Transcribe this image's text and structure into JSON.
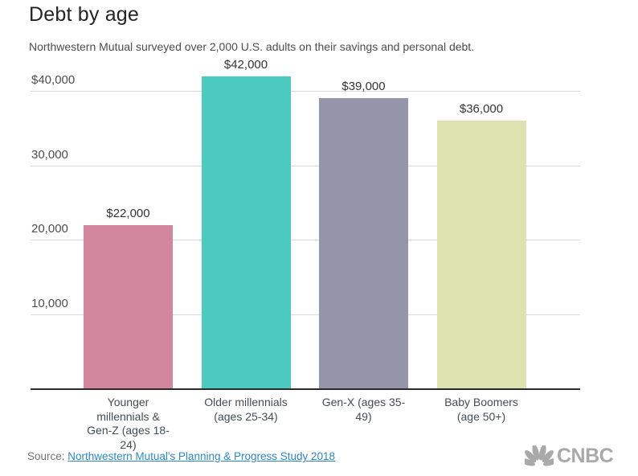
{
  "chart_data": {
    "type": "bar",
    "title": "Debt by age",
    "subtitle": "Northwestern Mutual surveyed over 2,000 U.S. adults on their savings and personal debt.",
    "categories": [
      "Younger millennials & Gen-Z (ages 18-24)",
      "Older millennials (ages 25-34)",
      "Gen-X (ages 35-49)",
      "Baby Boomers (age 50+)"
    ],
    "category_label_lines": [
      [
        "Younger",
        "millennials &",
        "Gen-Z (ages 18-",
        "24)"
      ],
      [
        "Older millennials",
        "(ages 25-34)"
      ],
      [
        "Gen-X (ages 35-",
        "49)"
      ],
      [
        "Baby Boomers",
        "(age 50+)"
      ]
    ],
    "values": [
      22000,
      42000,
      39000,
      36000
    ],
    "value_labels": [
      "$22,000",
      "$42,000",
      "$39,000",
      "$36,000"
    ],
    "bar_colors": [
      "#d2879f",
      "#4cc9c0",
      "#9495a8",
      "#dce2b0"
    ],
    "y_axis": {
      "ticks": [
        {
          "value": 40000,
          "label": "$40,000"
        },
        {
          "value": 30000,
          "label": "30,000"
        },
        {
          "value": 20000,
          "label": "20,000"
        },
        {
          "value": 10000,
          "label": "10,000"
        }
      ],
      "range": [
        0,
        46000
      ],
      "grid": true
    },
    "xlabel": "",
    "ylabel": "",
    "legend_position": "none"
  },
  "footer": {
    "source_prefix": "Source:",
    "source_link_text": "Northwestern Mutual's Planning & Progress Study 2018",
    "brand": "CNBC",
    "logo_icon": "nbc-peacock-icon",
    "logo_color": "#a9a9a9",
    "link_color": "#2e88c8"
  }
}
